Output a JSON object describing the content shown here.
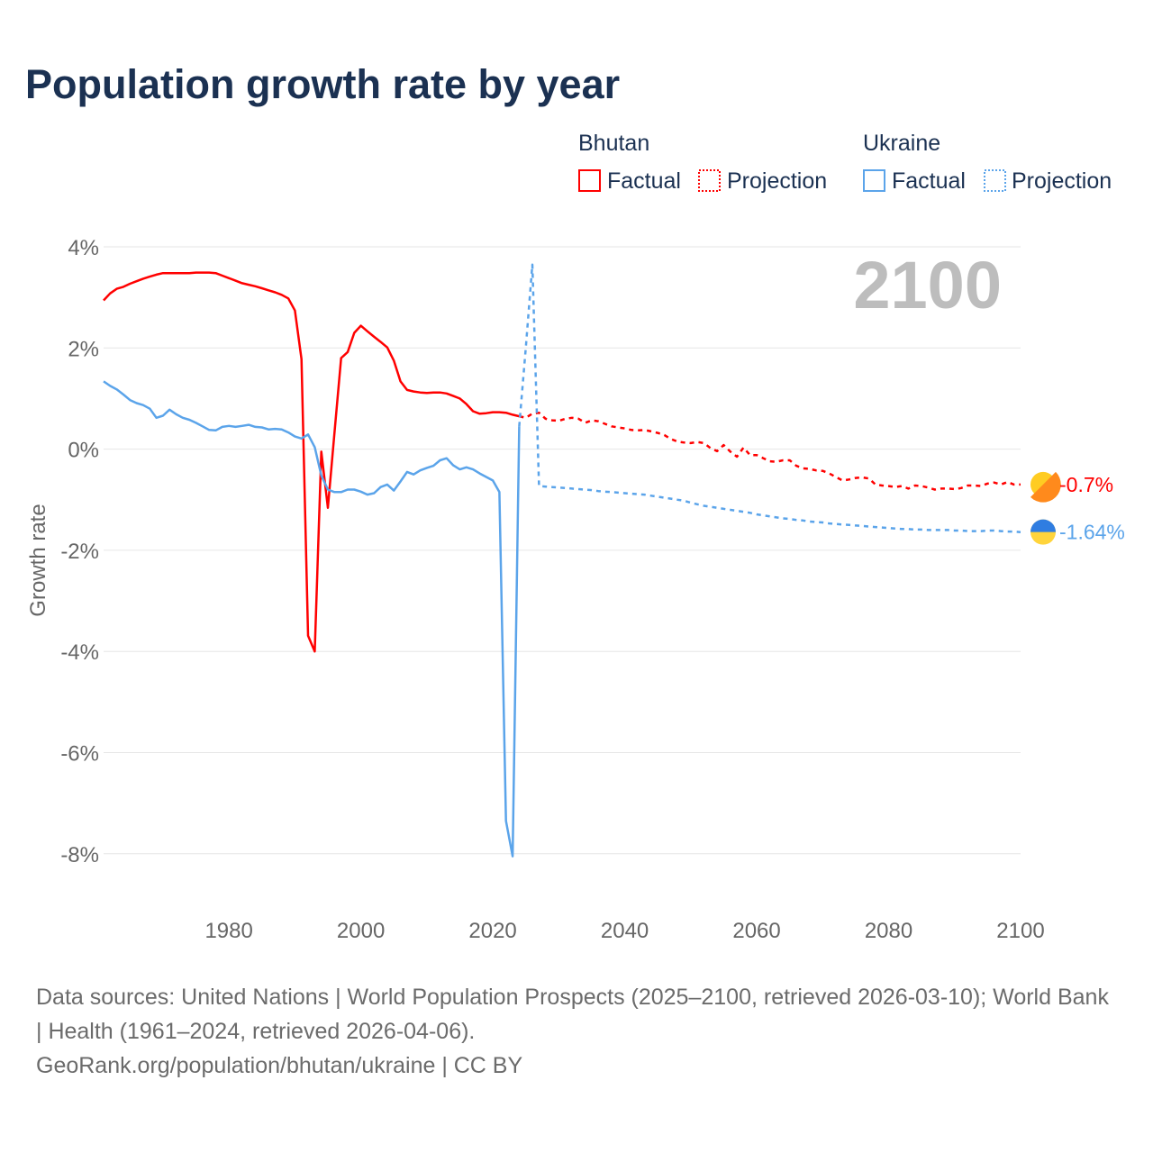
{
  "title": "Population growth rate by year",
  "legend": {
    "groups": [
      {
        "name": "Bhutan",
        "factual": "Factual",
        "projection": "Projection",
        "color": "#ff0000"
      },
      {
        "name": "Ukraine",
        "factual": "Factual",
        "projection": "Projection",
        "color": "#5ba4ea"
      }
    ]
  },
  "year_display": "2100",
  "end_labels": {
    "bhutan": "-0.7%",
    "ukraine": "-1.64%"
  },
  "sources": {
    "line1": "Data sources: United Nations | World Population Prospects (2025–2100, retrieved 2026-03-10); World Bank | Health (1961–2024, retrieved 2026-04-06).",
    "line2": "GeoRank.org/population/bhutan/ukraine | CC BY"
  },
  "chart_data": {
    "type": "line",
    "title": "Population growth rate by year",
    "xlabel": "",
    "ylabel": "Growth rate",
    "xlim": [
      1961,
      2100
    ],
    "ylim": [
      -9,
      4.4
    ],
    "x_ticks": [
      1980,
      2000,
      2020,
      2040,
      2060,
      2080,
      2100
    ],
    "y_ticks": [
      {
        "value": 4,
        "label": "4%"
      },
      {
        "value": 2,
        "label": "2%"
      },
      {
        "value": 0,
        "label": "0%"
      },
      {
        "value": -2,
        "label": "-2%"
      },
      {
        "value": -4,
        "label": "-4%"
      },
      {
        "value": -6,
        "label": "-6%"
      },
      {
        "value": -8,
        "label": "-8%"
      }
    ],
    "grid": true,
    "legend_position": "top-right",
    "series": [
      {
        "name": "Bhutan Factual",
        "color": "#ff0000",
        "dashed": false,
        "start_year": 1961,
        "values": [
          2.94,
          3.08,
          3.17,
          3.21,
          3.27,
          3.32,
          3.37,
          3.41,
          3.45,
          3.48,
          3.48,
          3.48,
          3.48,
          3.48,
          3.49,
          3.49,
          3.49,
          3.48,
          3.43,
          3.38,
          3.33,
          3.28,
          3.25,
          3.22,
          3.18,
          3.14,
          3.1,
          3.05,
          2.98,
          2.74,
          1.78,
          -3.69,
          -4.0,
          -0.05,
          -1.16,
          0.32,
          1.8,
          1.92,
          2.3,
          2.44,
          2.33,
          2.22,
          2.12,
          2.01,
          1.75,
          1.34,
          1.17,
          1.14,
          1.12,
          1.11,
          1.12,
          1.12,
          1.1,
          1.05,
          1.0,
          0.89,
          0.75,
          0.7,
          0.71,
          0.73,
          0.73,
          0.72,
          0.68,
          0.65
        ]
      },
      {
        "name": "Bhutan Projection",
        "color": "#ff0000",
        "dashed": true,
        "start_year": 2025,
        "values": [
          0.62,
          0.7,
          0.72,
          0.6,
          0.57,
          0.56,
          0.6,
          0.62,
          0.6,
          0.52,
          0.57,
          0.55,
          0.5,
          0.45,
          0.43,
          0.41,
          0.38,
          0.37,
          0.38,
          0.35,
          0.32,
          0.28,
          0.2,
          0.15,
          0.13,
          0.12,
          0.14,
          0.12,
          0.02,
          -0.04,
          0.08,
          -0.05,
          -0.15,
          0.03,
          -0.12,
          -0.12,
          -0.18,
          -0.24,
          -0.25,
          -0.22,
          -0.22,
          -0.33,
          -0.38,
          -0.39,
          -0.42,
          -0.43,
          -0.48,
          -0.55,
          -0.62,
          -0.6,
          -0.57,
          -0.56,
          -0.58,
          -0.7,
          -0.72,
          -0.73,
          -0.75,
          -0.73,
          -0.78,
          -0.72,
          -0.73,
          -0.76,
          -0.8,
          -0.78,
          -0.78,
          -0.79,
          -0.77,
          -0.72,
          -0.72,
          -0.73,
          -0.68,
          -0.66,
          -0.7,
          -0.65,
          -0.7,
          -0.7
        ]
      },
      {
        "name": "Ukraine Factual",
        "color": "#5ba4ea",
        "dashed": false,
        "start_year": 1961,
        "values": [
          1.34,
          1.25,
          1.18,
          1.08,
          0.97,
          0.91,
          0.87,
          0.8,
          0.62,
          0.66,
          0.78,
          0.69,
          0.62,
          0.58,
          0.52,
          0.45,
          0.38,
          0.37,
          0.44,
          0.46,
          0.44,
          0.46,
          0.48,
          0.44,
          0.43,
          0.39,
          0.4,
          0.39,
          0.33,
          0.25,
          0.21,
          0.29,
          0.04,
          -0.52,
          -0.8,
          -0.85,
          -0.85,
          -0.8,
          -0.8,
          -0.84,
          -0.9,
          -0.87,
          -0.75,
          -0.7,
          -0.82,
          -0.64,
          -0.45,
          -0.5,
          -0.42,
          -0.37,
          -0.33,
          -0.22,
          -0.18,
          -0.32,
          -0.4,
          -0.36,
          -0.4,
          -0.48,
          -0.55,
          -0.62,
          -0.85,
          -7.35,
          -8.05,
          0.45
        ]
      },
      {
        "name": "Ukraine Projection",
        "color": "#5ba4ea",
        "dashed": true,
        "start_year": 2025,
        "values": [
          2.0,
          3.65,
          -0.73,
          -0.74,
          -0.75,
          -0.76,
          -0.77,
          -0.78,
          -0.79,
          -0.8,
          -0.81,
          -0.83,
          -0.84,
          -0.85,
          -0.86,
          -0.87,
          -0.88,
          -0.89,
          -0.9,
          -0.92,
          -0.94,
          -0.96,
          -0.98,
          -1.0,
          -1.02,
          -1.06,
          -1.09,
          -1.12,
          -1.14,
          -1.16,
          -1.18,
          -1.2,
          -1.22,
          -1.24,
          -1.26,
          -1.29,
          -1.31,
          -1.33,
          -1.35,
          -1.37,
          -1.38,
          -1.4,
          -1.41,
          -1.43,
          -1.44,
          -1.45,
          -1.47,
          -1.48,
          -1.49,
          -1.5,
          -1.51,
          -1.52,
          -1.53,
          -1.54,
          -1.55,
          -1.56,
          -1.57,
          -1.58,
          -1.58,
          -1.59,
          -1.59,
          -1.6,
          -1.6,
          -1.6,
          -1.6,
          -1.61,
          -1.61,
          -1.62,
          -1.62,
          -1.62,
          -1.61,
          -1.61,
          -1.62,
          -1.63,
          -1.63,
          -1.64
        ]
      }
    ]
  }
}
